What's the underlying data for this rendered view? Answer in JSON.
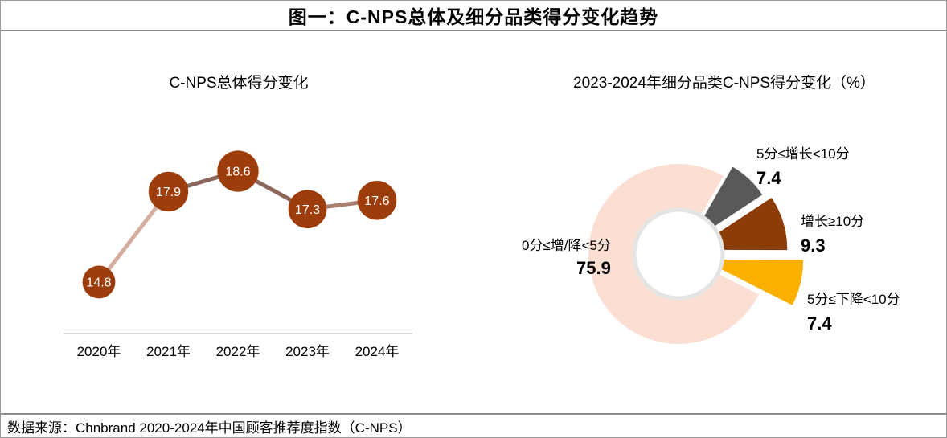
{
  "window": {
    "title": "图一：C-NPS总体及细分品类得分变化趋势",
    "footer_source": "数据来源：Chnbrand 2020-2024年中国顾客推荐度指数（C-NPS）"
  },
  "colors": {
    "marker": "#9E3D0C",
    "marker_value_text": "#FFFFFF",
    "line_segments": [
      "#D5AEA0",
      "#8A655A",
      "#8D675C",
      "#A87E6E"
    ],
    "axis_line": "#D9D9D9",
    "divider": "#8C8C8C",
    "donut_hole_ring": "#E4E4E4",
    "year_label_text": "#000000"
  },
  "chart_data": [
    {
      "type": "line",
      "title": "C-NPS总体得分变化",
      "categories": [
        "2020年",
        "2021年",
        "2022年",
        "2023年",
        "2024年"
      ],
      "values": [
        14.8,
        17.9,
        18.6,
        17.3,
        17.6
      ],
      "xlabel": "",
      "ylabel": "",
      "grid": false,
      "legend": "none",
      "marker_labels_shown": true
    },
    {
      "type": "pie",
      "title": "2023-2024年细分品类C-NPS得分变化（%）",
      "donut": true,
      "legend": "none",
      "slices": [
        {
          "label": "5分≤增长<10分",
          "value": 7.4,
          "color": "#595959"
        },
        {
          "label": "增长≥10分",
          "value": 9.3,
          "color": "#8C3D07"
        },
        {
          "label": "5分≤下降<10分",
          "value": 7.4,
          "color": "#FBB000"
        },
        {
          "label": "0分≤增/降<5分",
          "value": 75.9,
          "color": "#FADFD2"
        }
      ]
    }
  ]
}
